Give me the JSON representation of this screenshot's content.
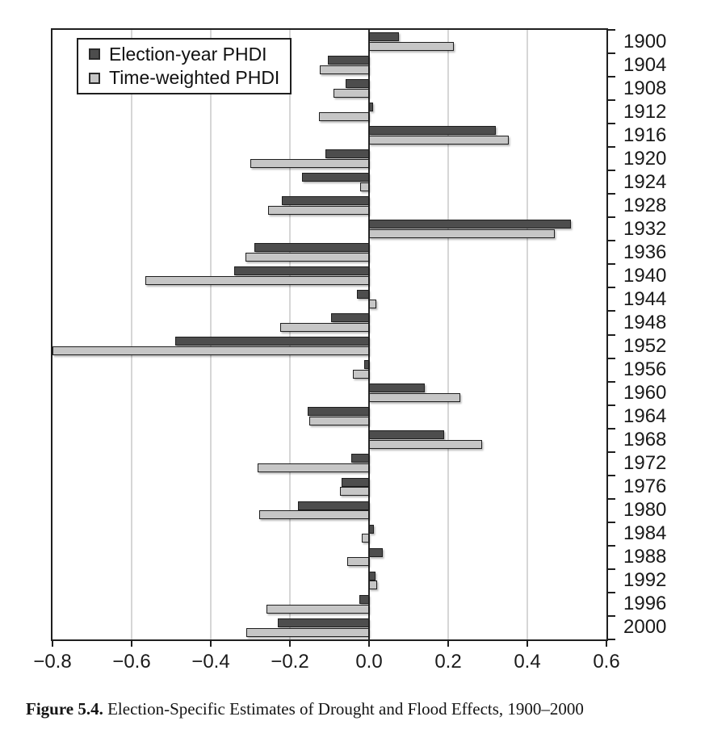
{
  "figure": {
    "caption_label": "Figure 5.4.",
    "caption_text": " Election-Specific Estimates of Drought and Flood Effects, 1900–2000"
  },
  "legend": {
    "items": [
      {
        "label": "Election-year PHDI",
        "color": "#4d4d4d"
      },
      {
        "label": "Time-weighted PHDI",
        "color": "#c6c6c6"
      }
    ]
  },
  "chart_data": {
    "type": "bar",
    "orientation": "horizontal",
    "title": "",
    "xlabel": "",
    "ylabel": "",
    "categories": [
      "1900",
      "1904",
      "1908",
      "1912",
      "1916",
      "1920",
      "1924",
      "1928",
      "1932",
      "1936",
      "1940",
      "1944",
      "1948",
      "1952",
      "1956",
      "1960",
      "1964",
      "1968",
      "1972",
      "1976",
      "1980",
      "1984",
      "1988",
      "1992",
      "1996",
      "2000"
    ],
    "series": [
      {
        "name": "Election-year PHDI",
        "color": "#4d4d4d",
        "values": [
          0.075,
          -0.105,
          -0.06,
          0.01,
          0.32,
          -0.11,
          -0.17,
          -0.22,
          0.51,
          -0.29,
          -0.34,
          -0.03,
          -0.095,
          -0.49,
          -0.012,
          0.14,
          -0.155,
          0.19,
          -0.045,
          -0.07,
          -0.18,
          0.013,
          0.035,
          0.016,
          -0.024,
          -0.23
        ]
      },
      {
        "name": "Time-weighted PHDI",
        "color": "#c6c6c6",
        "values": [
          0.215,
          -0.125,
          -0.09,
          -0.127,
          0.353,
          -0.3,
          -0.023,
          -0.256,
          0.47,
          -0.313,
          -0.565,
          0.018,
          -0.225,
          -0.8,
          -0.04,
          0.23,
          -0.152,
          0.285,
          -0.282,
          -0.073,
          -0.277,
          -0.019,
          -0.056,
          0.021,
          -0.26,
          -0.31
        ]
      }
    ],
    "xlim": [
      -0.8,
      0.6
    ],
    "x_ticks": [
      {
        "label": "−0.8",
        "value": -0.8
      },
      {
        "label": "−0.6",
        "value": -0.6
      },
      {
        "label": "−0.4",
        "value": -0.4
      },
      {
        "label": "−0.2",
        "value": -0.2
      },
      {
        "label": "0.0",
        "value": 0.0
      },
      {
        "label": "0.2",
        "value": 0.2
      },
      {
        "label": "0.4",
        "value": 0.4
      },
      {
        "label": "0.6",
        "value": 0.6
      }
    ],
    "gridline_values": [
      -0.6,
      -0.4,
      -0.2,
      0.2,
      0.4
    ],
    "zero_line": true,
    "grid": true,
    "legend_position": "top-left",
    "colors": {
      "bar_border": "#1f1f1f",
      "gridline": "#d6d6d6",
      "zero_line": "#2b2b2b",
      "axis": "#1f1f1f",
      "text": "#1a1a1a"
    }
  }
}
